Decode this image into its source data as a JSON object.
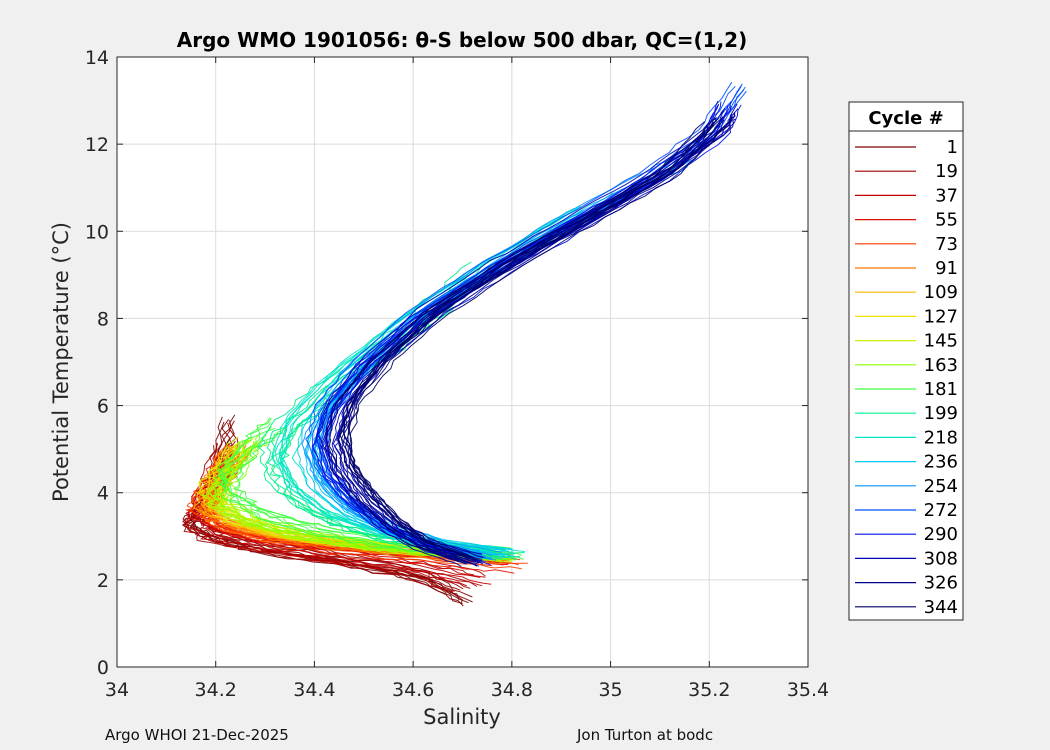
{
  "chart_data": {
    "type": "line",
    "title": "Argo WMO 1901056: θ-S below 500 dbar,  QC=(1,2)",
    "xlabel": "Salinity",
    "ylabel": "Potential Temperature (°C)",
    "xlim": [
      34,
      35.4
    ],
    "ylim": [
      0,
      14
    ],
    "xticks": [
      34,
      34.2,
      34.4,
      34.6,
      34.8,
      35,
      35.2,
      35.4
    ],
    "xtick_labels": [
      "34",
      "34.2",
      "34.4",
      "34.6",
      "34.8",
      "35",
      "35.2",
      "35.4"
    ],
    "yticks": [
      0,
      2,
      4,
      6,
      8,
      10,
      12,
      14
    ],
    "ytick_labels": [
      "0",
      "2",
      "4",
      "6",
      "8",
      "10",
      "12",
      "14"
    ],
    "grid": true,
    "legend_title": "Cycle #",
    "legend_position": "outside-right",
    "series": [
      {
        "name": "1",
        "color": "#7f0000",
        "profile": [
          [
            34.71,
            1.5
          ],
          [
            34.62,
            2.1
          ],
          [
            34.45,
            2.45
          ],
          [
            34.3,
            2.7
          ],
          [
            34.2,
            3.0
          ],
          [
            34.15,
            3.3
          ],
          [
            34.17,
            3.7
          ],
          [
            34.21,
            4.5
          ],
          [
            34.23,
            5.7
          ]
        ]
      },
      {
        "name": "19",
        "color": "#a00000",
        "profile": [
          [
            34.7,
            1.8
          ],
          [
            34.6,
            2.2
          ],
          [
            34.45,
            2.5
          ],
          [
            34.3,
            2.75
          ],
          [
            34.2,
            3.0
          ],
          [
            34.16,
            3.3
          ],
          [
            34.17,
            3.7
          ],
          [
            34.2,
            4.3
          ],
          [
            34.22,
            5.2
          ]
        ]
      },
      {
        "name": "37",
        "color": "#c00000",
        "profile": [
          [
            34.74,
            2.0
          ],
          [
            34.62,
            2.3
          ],
          [
            34.45,
            2.55
          ],
          [
            34.3,
            2.8
          ],
          [
            34.21,
            3.05
          ],
          [
            34.17,
            3.35
          ],
          [
            34.18,
            3.8
          ],
          [
            34.2,
            4.2
          ],
          [
            34.22,
            4.8
          ]
        ]
      },
      {
        "name": "55",
        "color": "#e01000",
        "profile": [
          [
            34.78,
            2.3
          ],
          [
            34.65,
            2.45
          ],
          [
            34.48,
            2.6
          ],
          [
            34.32,
            2.8
          ],
          [
            34.22,
            3.1
          ],
          [
            34.17,
            3.4
          ],
          [
            34.18,
            3.85
          ],
          [
            34.2,
            4.3
          ],
          [
            34.23,
            4.9
          ]
        ]
      },
      {
        "name": "73",
        "color": "#ff3c00",
        "profile": [
          [
            34.8,
            2.4
          ],
          [
            34.66,
            2.5
          ],
          [
            34.5,
            2.65
          ],
          [
            34.33,
            2.85
          ],
          [
            34.22,
            3.15
          ],
          [
            34.17,
            3.5
          ],
          [
            34.18,
            3.9
          ],
          [
            34.21,
            4.4
          ],
          [
            34.24,
            5.0
          ]
        ]
      },
      {
        "name": "91",
        "color": "#ff7800",
        "profile": [
          [
            34.79,
            2.45
          ],
          [
            34.65,
            2.55
          ],
          [
            34.5,
            2.7
          ],
          [
            34.34,
            2.9
          ],
          [
            34.23,
            3.2
          ],
          [
            34.18,
            3.55
          ],
          [
            34.19,
            3.95
          ],
          [
            34.21,
            4.4
          ],
          [
            34.24,
            5.0
          ]
        ]
      },
      {
        "name": "109",
        "color": "#ffb400",
        "profile": [
          [
            34.78,
            2.5
          ],
          [
            34.64,
            2.6
          ],
          [
            34.49,
            2.75
          ],
          [
            34.34,
            2.95
          ],
          [
            34.24,
            3.25
          ],
          [
            34.19,
            3.6
          ],
          [
            34.19,
            4.0
          ],
          [
            34.22,
            4.5
          ],
          [
            34.25,
            5.0
          ]
        ]
      },
      {
        "name": "127",
        "color": "#f0e000",
        "profile": [
          [
            34.77,
            2.5
          ],
          [
            34.63,
            2.62
          ],
          [
            34.48,
            2.78
          ],
          [
            34.34,
            3.0
          ],
          [
            34.25,
            3.3
          ],
          [
            34.2,
            3.7
          ],
          [
            34.2,
            4.1
          ],
          [
            34.22,
            4.6
          ],
          [
            34.26,
            5.1
          ]
        ]
      },
      {
        "name": "145",
        "color": "#c8f000",
        "profile": [
          [
            34.78,
            2.55
          ],
          [
            34.64,
            2.65
          ],
          [
            34.5,
            2.8
          ],
          [
            34.36,
            3.05
          ],
          [
            34.26,
            3.35
          ],
          [
            34.2,
            3.75
          ],
          [
            34.2,
            4.15
          ],
          [
            34.23,
            4.65
          ],
          [
            34.27,
            5.2
          ]
        ]
      },
      {
        "name": "163",
        "color": "#8cff00",
        "profile": [
          [
            34.79,
            2.55
          ],
          [
            34.65,
            2.68
          ],
          [
            34.5,
            2.85
          ],
          [
            34.37,
            3.1
          ],
          [
            34.27,
            3.4
          ],
          [
            34.21,
            3.8
          ],
          [
            34.21,
            4.2
          ],
          [
            34.24,
            4.7
          ],
          [
            34.28,
            5.3
          ]
        ]
      },
      {
        "name": "181",
        "color": "#40ff40",
        "profile": [
          [
            34.8,
            2.6
          ],
          [
            34.66,
            2.7
          ],
          [
            34.52,
            2.9
          ],
          [
            34.39,
            3.2
          ],
          [
            34.29,
            3.55
          ],
          [
            34.23,
            3.95
          ],
          [
            34.22,
            4.4
          ],
          [
            34.26,
            5.0
          ],
          [
            34.32,
            5.6
          ]
        ]
      },
      {
        "name": "199",
        "color": "#00f08c",
        "profile": [
          [
            34.8,
            2.6
          ],
          [
            34.66,
            2.75
          ],
          [
            34.53,
            3.0
          ],
          [
            34.42,
            3.4
          ],
          [
            34.34,
            4.0
          ],
          [
            34.31,
            4.7
          ],
          [
            34.33,
            5.4
          ],
          [
            34.42,
            6.3
          ],
          [
            34.55,
            7.4
          ],
          [
            34.65,
            8.3
          ],
          [
            34.74,
            9.2
          ]
        ]
      },
      {
        "name": "218",
        "color": "#00e6c8",
        "profile": [
          [
            34.81,
            2.65
          ],
          [
            34.68,
            2.8
          ],
          [
            34.55,
            3.05
          ],
          [
            34.44,
            3.5
          ],
          [
            34.37,
            4.1
          ],
          [
            34.34,
            4.8
          ],
          [
            34.36,
            5.6
          ],
          [
            34.44,
            6.6
          ],
          [
            34.56,
            7.7
          ],
          [
            34.7,
            8.8
          ],
          [
            34.86,
            9.9
          ],
          [
            34.95,
            10.5
          ]
        ]
      },
      {
        "name": "236",
        "color": "#00c8f0",
        "profile": [
          [
            34.78,
            2.6
          ],
          [
            34.66,
            2.8
          ],
          [
            34.55,
            3.1
          ],
          [
            34.46,
            3.6
          ],
          [
            34.4,
            4.2
          ],
          [
            34.38,
            4.9
          ],
          [
            34.4,
            5.7
          ],
          [
            34.47,
            6.7
          ],
          [
            34.58,
            7.8
          ],
          [
            34.72,
            8.9
          ],
          [
            34.88,
            10.0
          ],
          [
            35.02,
            10.9
          ]
        ]
      },
      {
        "name": "254",
        "color": "#0096ff",
        "profile": [
          [
            34.76,
            2.55
          ],
          [
            34.65,
            2.8
          ],
          [
            34.55,
            3.15
          ],
          [
            34.47,
            3.7
          ],
          [
            34.42,
            4.3
          ],
          [
            34.4,
            5.0
          ],
          [
            34.42,
            5.8
          ],
          [
            34.49,
            6.8
          ],
          [
            34.6,
            7.9
          ],
          [
            34.74,
            9.0
          ],
          [
            34.9,
            10.1
          ],
          [
            35.05,
            11.0
          ],
          [
            35.15,
            11.6
          ]
        ]
      },
      {
        "name": "272",
        "color": "#0050ff",
        "profile": [
          [
            34.74,
            2.5
          ],
          [
            34.64,
            2.8
          ],
          [
            34.55,
            3.2
          ],
          [
            34.48,
            3.75
          ],
          [
            34.43,
            4.4
          ],
          [
            34.41,
            5.1
          ],
          [
            34.43,
            5.9
          ],
          [
            34.5,
            6.9
          ],
          [
            34.61,
            8.0
          ],
          [
            34.76,
            9.1
          ],
          [
            34.93,
            10.2
          ],
          [
            35.08,
            11.2
          ],
          [
            35.2,
            12.2
          ],
          [
            35.27,
            13.3
          ]
        ]
      },
      {
        "name": "290",
        "color": "#0010e6",
        "profile": [
          [
            34.73,
            2.45
          ],
          [
            34.63,
            2.8
          ],
          [
            34.55,
            3.25
          ],
          [
            34.49,
            3.8
          ],
          [
            34.44,
            4.45
          ],
          [
            34.42,
            5.15
          ],
          [
            34.44,
            5.95
          ],
          [
            34.51,
            6.95
          ],
          [
            34.62,
            8.05
          ],
          [
            34.77,
            9.15
          ],
          [
            34.94,
            10.25
          ],
          [
            35.09,
            11.25
          ],
          [
            35.21,
            12.25
          ],
          [
            35.24,
            13.0
          ]
        ]
      },
      {
        "name": "308",
        "color": "#0000b4",
        "profile": [
          [
            34.72,
            2.45
          ],
          [
            34.62,
            2.8
          ],
          [
            34.55,
            3.3
          ],
          [
            34.49,
            3.85
          ],
          [
            34.45,
            4.5
          ],
          [
            34.43,
            5.2
          ],
          [
            34.45,
            6.0
          ],
          [
            34.52,
            7.0
          ],
          [
            34.63,
            8.1
          ],
          [
            34.78,
            9.2
          ],
          [
            34.95,
            10.3
          ],
          [
            35.1,
            11.3
          ],
          [
            35.22,
            12.3
          ],
          [
            35.24,
            12.8
          ]
        ]
      },
      {
        "name": "326",
        "color": "#00008c",
        "profile": [
          [
            34.72,
            2.4
          ],
          [
            34.62,
            2.8
          ],
          [
            34.55,
            3.3
          ],
          [
            34.5,
            3.9
          ],
          [
            34.46,
            4.55
          ],
          [
            34.44,
            5.25
          ],
          [
            34.46,
            6.05
          ],
          [
            34.53,
            7.05
          ],
          [
            34.64,
            8.15
          ],
          [
            34.79,
            9.25
          ],
          [
            34.96,
            10.35
          ],
          [
            35.11,
            11.35
          ],
          [
            35.22,
            12.4
          ],
          [
            35.23,
            12.6
          ]
        ]
      },
      {
        "name": "344",
        "color": "#000064",
        "profile": [
          [
            34.71,
            2.4
          ],
          [
            34.61,
            2.8
          ],
          [
            34.55,
            3.35
          ],
          [
            34.5,
            3.95
          ],
          [
            34.46,
            4.6
          ],
          [
            34.45,
            5.3
          ],
          [
            34.47,
            6.1
          ],
          [
            34.54,
            7.1
          ],
          [
            34.65,
            8.2
          ],
          [
            34.8,
            9.3
          ],
          [
            34.97,
            10.4
          ],
          [
            35.12,
            11.4
          ],
          [
            35.21,
            12.5
          ]
        ]
      }
    ]
  },
  "footer": {
    "left": "Argo WHOI 21-Dec-2025",
    "right": "Jon Turton at bodc"
  }
}
